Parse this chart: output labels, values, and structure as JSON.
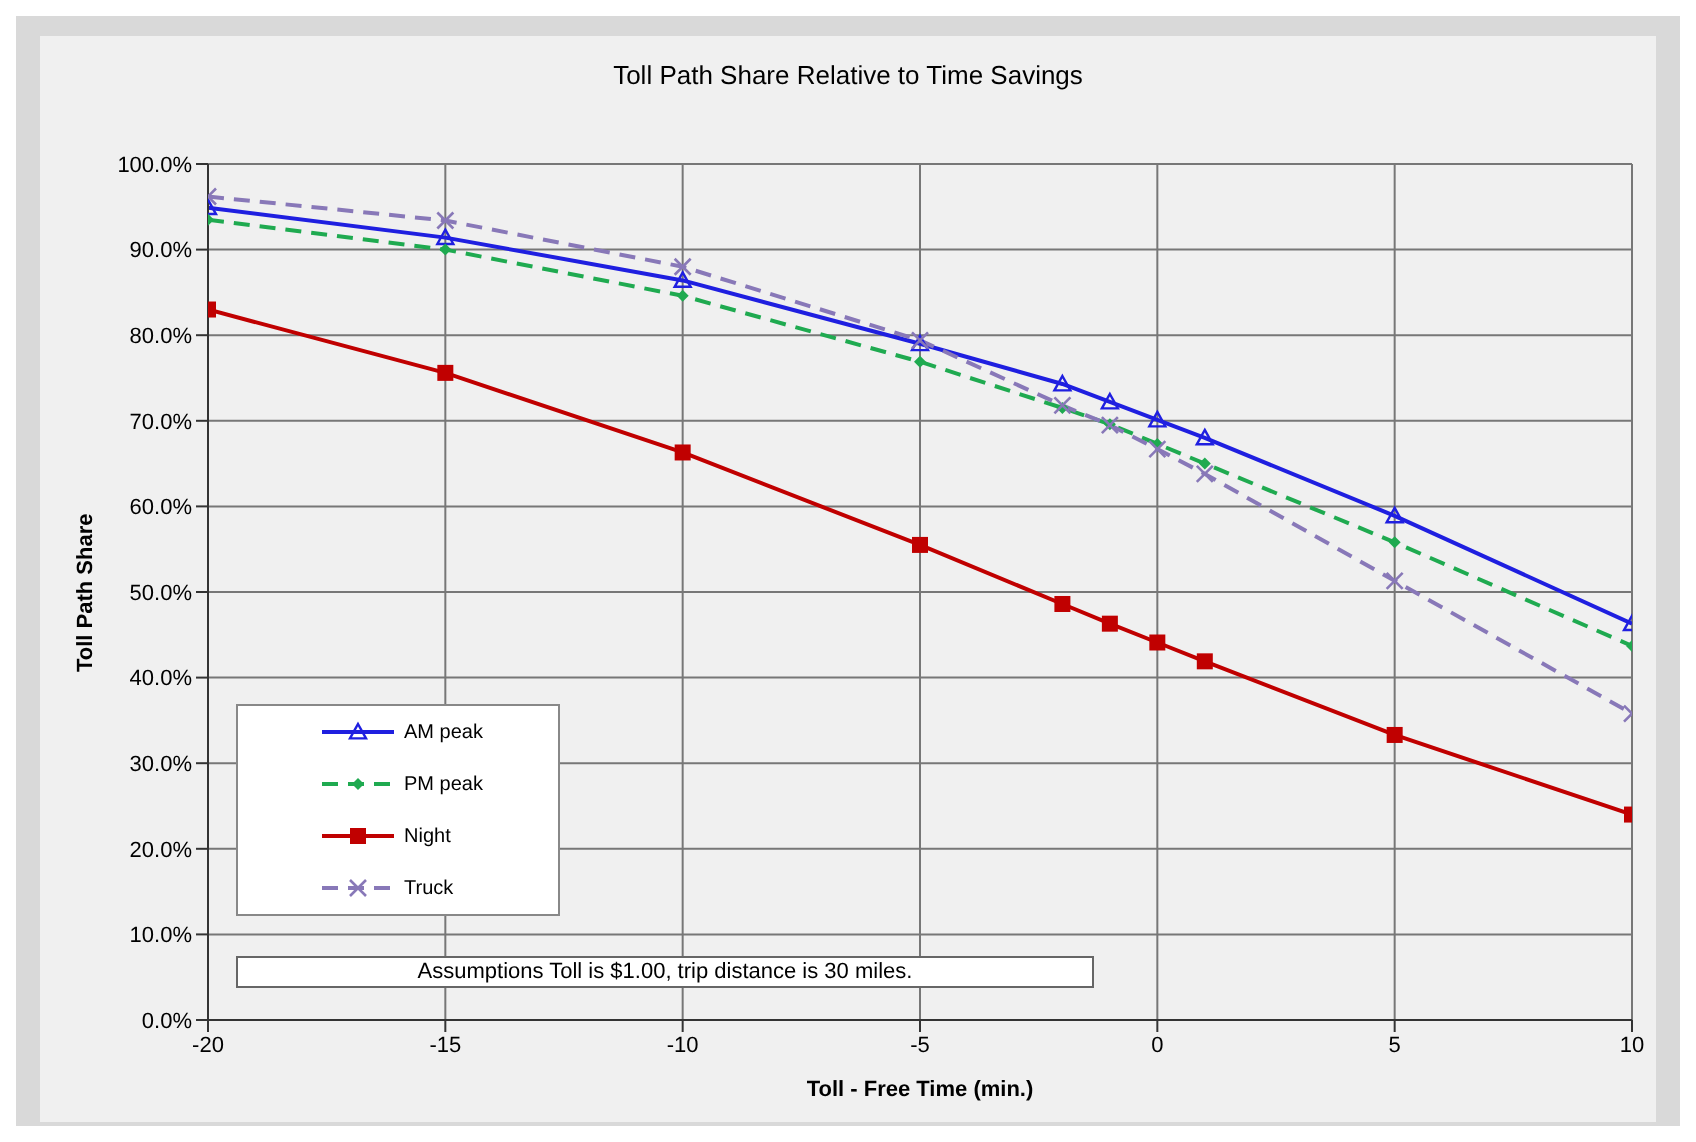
{
  "chart_data": {
    "type": "line",
    "title": "Toll Path Share Relative to Time Savings",
    "xlabel": "Toll - Free Time (min.)",
    "ylabel": "Toll Path Share",
    "x": [
      -20,
      -15,
      -10,
      -5,
      -2,
      -1,
      0,
      1,
      5,
      10
    ],
    "series": [
      {
        "name": "AM peak",
        "color": "#1f1fe0",
        "marker": "triangle",
        "line_style": "solid",
        "values": [
          94.9,
          91.4,
          86.4,
          79.0,
          74.3,
          72.2,
          70.1,
          68.0,
          58.9,
          46.3
        ]
      },
      {
        "name": "PM peak",
        "color": "#1faa50",
        "marker": "diamond",
        "line_style": "dashed",
        "values": [
          93.5,
          90.0,
          84.6,
          76.9,
          71.5,
          69.6,
          67.3,
          65.0,
          55.8,
          43.7
        ]
      },
      {
        "name": "Night",
        "color": "#c00000",
        "marker": "square",
        "line_style": "solid",
        "values": [
          83.0,
          75.6,
          66.3,
          55.5,
          48.6,
          46.3,
          44.1,
          41.9,
          33.3,
          24.0
        ]
      },
      {
        "name": "Truck",
        "color": "#8878b8",
        "marker": "cross",
        "line_style": "dashed",
        "values": [
          96.2,
          93.4,
          88.0,
          79.4,
          71.8,
          69.5,
          66.7,
          63.8,
          51.3,
          35.8
        ]
      }
    ],
    "xlim": [
      -20,
      10
    ],
    "xticks": [
      -20,
      -15,
      -10,
      -5,
      0,
      5,
      10
    ],
    "ylim": [
      0,
      100
    ],
    "yticks": [
      {
        "value": 0,
        "label": "0.0%"
      },
      {
        "value": 10,
        "label": "10.0%"
      },
      {
        "value": 20,
        "label": "20.0%"
      },
      {
        "value": 30,
        "label": "30.0%"
      },
      {
        "value": 40,
        "label": "40.0%"
      },
      {
        "value": 50,
        "label": "50.0%"
      },
      {
        "value": 60,
        "label": "60.0%"
      },
      {
        "value": 70,
        "label": "70.0%"
      },
      {
        "value": 80,
        "label": "80.0%"
      },
      {
        "value": 90,
        "label": "90.0%"
      },
      {
        "value": 100,
        "label": "100.0%"
      }
    ],
    "grid": true,
    "legend": "bottom left",
    "annotations": [
      "Assumptions  Toll is $1.00, trip distance is 30 miles."
    ]
  }
}
